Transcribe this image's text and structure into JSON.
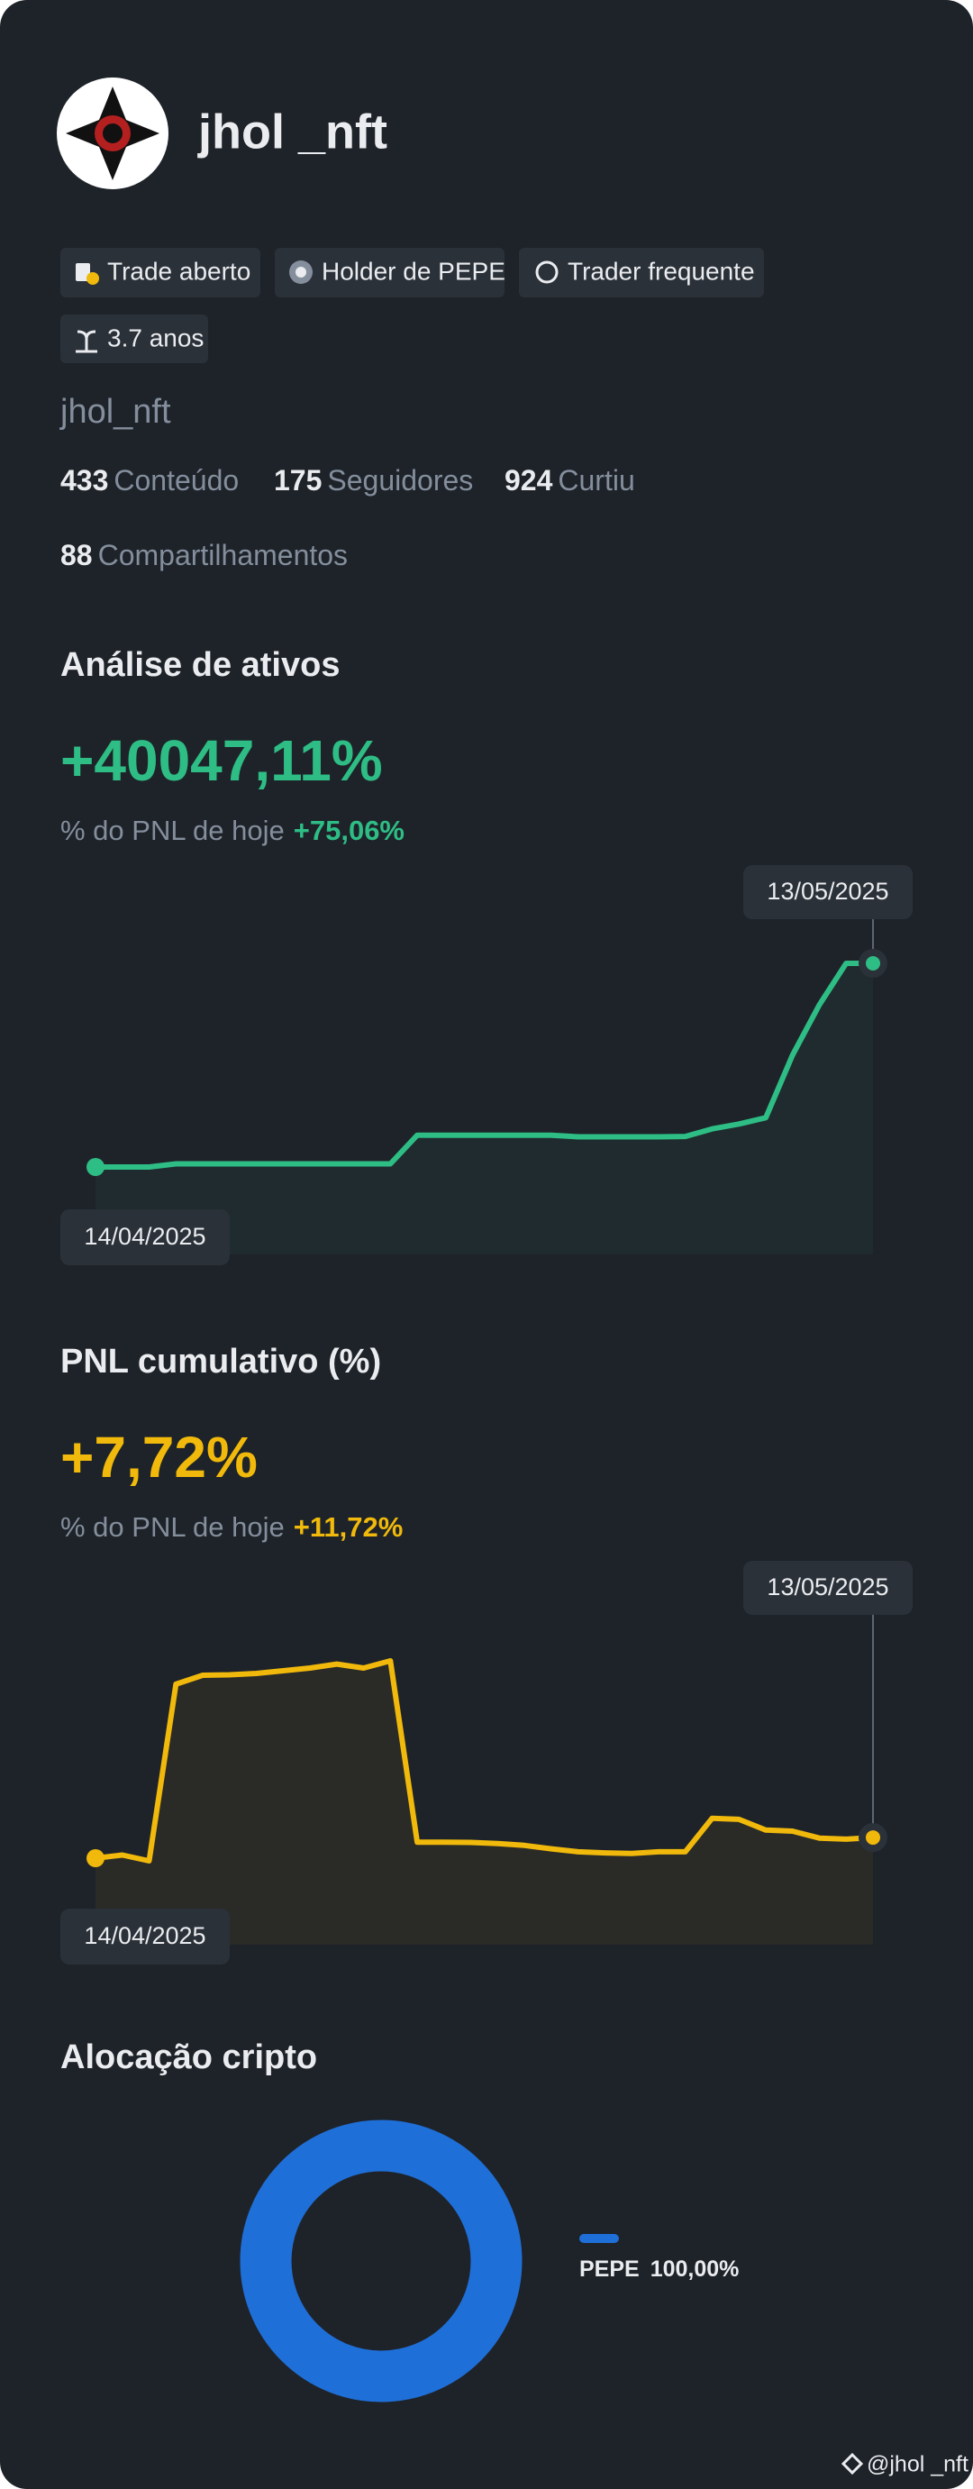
{
  "profile": {
    "name": "jhol _nft",
    "username": "jhol_nft",
    "badges": [
      "Trade aberto",
      "Holder de PEPE",
      "Trader frequente",
      "3.7 anos"
    ],
    "stats": [
      {
        "value": 433,
        "label": "Conteúdo"
      },
      {
        "value": 175,
        "label": "Seguidores"
      },
      {
        "value": 924,
        "label": "Curtiu"
      },
      {
        "value": 88,
        "label": "Compartilhamentos"
      }
    ]
  },
  "chart_data": [
    {
      "type": "line",
      "title": "Análise de ativos",
      "headline": "+40047,11%",
      "subtitle": "% do PNL de hoje",
      "today": "+75,06%",
      "color": "#2ebd85",
      "categories": [
        "14/04/2025",
        null,
        null,
        null,
        null,
        null,
        null,
        null,
        null,
        null,
        null,
        null,
        null,
        null,
        null,
        null,
        null,
        null,
        null,
        null,
        null,
        null,
        null,
        null,
        null,
        null,
        null,
        null,
        null,
        "13/05/2025"
      ],
      "values": [
        0,
        0,
        0,
        626,
        626,
        626,
        626,
        626,
        626,
        626,
        626,
        626,
        6257,
        6257,
        6257,
        6257,
        6257,
        6257,
        5944,
        5944,
        5944,
        5944,
        6000,
        7500,
        8447,
        9700,
        22000,
        31900,
        40047,
        40047
      ]
    },
    {
      "type": "line",
      "title": "PNL cumulativo (%)",
      "headline": "+7,72%",
      "subtitle": "% do PNL de hoje",
      "today": "+11,72%",
      "color": "#f0b90b",
      "categories": [
        "14/04/2025",
        null,
        null,
        null,
        null,
        null,
        null,
        null,
        null,
        null,
        null,
        null,
        null,
        null,
        null,
        null,
        null,
        null,
        null,
        null,
        null,
        null,
        null,
        null,
        null,
        null,
        null,
        null,
        null,
        "13/05/2025"
      ],
      "values": [
        0,
        1.2,
        -1,
        65,
        68.3,
        68.5,
        69,
        70,
        71,
        72.5,
        71,
        73.7,
        6,
        6,
        5.9,
        5.5,
        4.8,
        3.5,
        2.4,
        2,
        1.8,
        2.4,
        2.4,
        14.9,
        14.5,
        10.5,
        10.1,
        7.5,
        7.1,
        7.72
      ]
    },
    {
      "type": "pie",
      "title": "Alocação cripto",
      "categories": [
        "PEPE"
      ],
      "values": [
        100
      ],
      "value_labels": [
        "100,00%"
      ],
      "colors": [
        "#1f6fd8"
      ]
    }
  ],
  "footer": "@jhol _nft"
}
